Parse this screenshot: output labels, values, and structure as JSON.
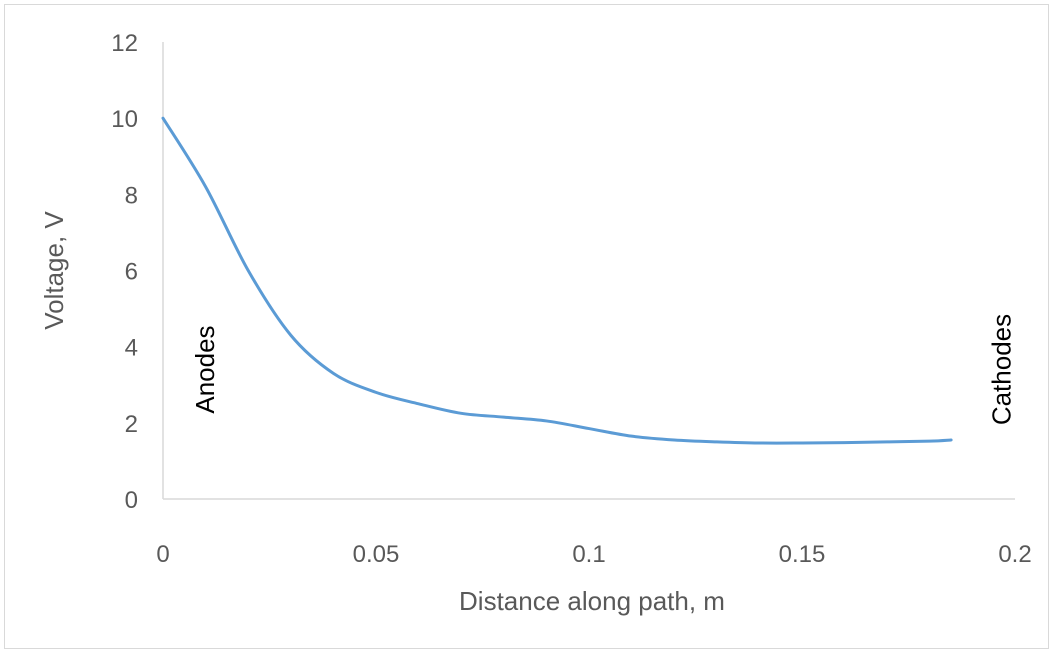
{
  "chart_data": {
    "type": "line",
    "title": "",
    "xlabel": "Distance along path, m",
    "ylabel": "Voltage, V",
    "xlim": [
      0,
      0.2
    ],
    "ylim": [
      0,
      12
    ],
    "x_ticks": [
      "0",
      "0.05",
      "0.1",
      "0.15",
      "0.2"
    ],
    "y_ticks": [
      "0",
      "2",
      "4",
      "6",
      "8",
      "10",
      "12"
    ],
    "grid": false,
    "legend": "none",
    "series": [
      {
        "color": "#5b9bd5",
        "x": [
          0,
          0.01,
          0.02,
          0.03,
          0.04,
          0.05,
          0.06,
          0.07,
          0.08,
          0.09,
          0.1,
          0.11,
          0.12,
          0.13,
          0.14,
          0.15,
          0.16,
          0.17,
          0.18,
          0.185
        ],
        "y": [
          10.0,
          8.2,
          6.0,
          4.3,
          3.3,
          2.8,
          2.5,
          2.25,
          2.15,
          2.05,
          1.85,
          1.65,
          1.55,
          1.5,
          1.47,
          1.47,
          1.48,
          1.5,
          1.52,
          1.55
        ]
      }
    ],
    "annotations": [
      {
        "text": "Anodes",
        "x": 0.012,
        "y": 3.4
      },
      {
        "text": "Cathodes",
        "x": 0.199,
        "y": 3.4
      }
    ]
  }
}
